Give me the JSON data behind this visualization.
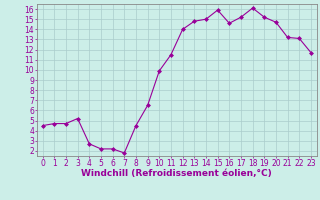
{
  "x": [
    0,
    1,
    2,
    3,
    4,
    5,
    6,
    7,
    8,
    9,
    10,
    11,
    12,
    13,
    14,
    15,
    16,
    17,
    18,
    19,
    20,
    21,
    22,
    23
  ],
  "y": [
    4.5,
    4.7,
    4.7,
    5.2,
    2.7,
    2.2,
    2.2,
    1.8,
    4.5,
    6.5,
    9.9,
    11.5,
    14.0,
    14.8,
    15.0,
    15.9,
    14.6,
    15.2,
    16.1,
    15.2,
    14.7,
    13.2,
    13.1,
    11.7
  ],
  "line_color": "#990099",
  "marker": "D",
  "marker_size": 2,
  "bg_color": "#cceee8",
  "grid_color": "#aacccc",
  "xlabel": "Windchill (Refroidissement éolien,°C)",
  "xlim": [
    -0.5,
    23.5
  ],
  "ylim": [
    1.5,
    16.5
  ],
  "yticks": [
    2,
    3,
    4,
    5,
    6,
    7,
    8,
    9,
    10,
    11,
    12,
    13,
    14,
    15,
    16
  ],
  "xticks": [
    0,
    1,
    2,
    3,
    4,
    5,
    6,
    7,
    8,
    9,
    10,
    11,
    12,
    13,
    14,
    15,
    16,
    17,
    18,
    19,
    20,
    21,
    22,
    23
  ],
  "tick_color": "#990099",
  "axis_color": "#888888",
  "label_fontsize": 6.5,
  "tick_fontsize": 5.5
}
